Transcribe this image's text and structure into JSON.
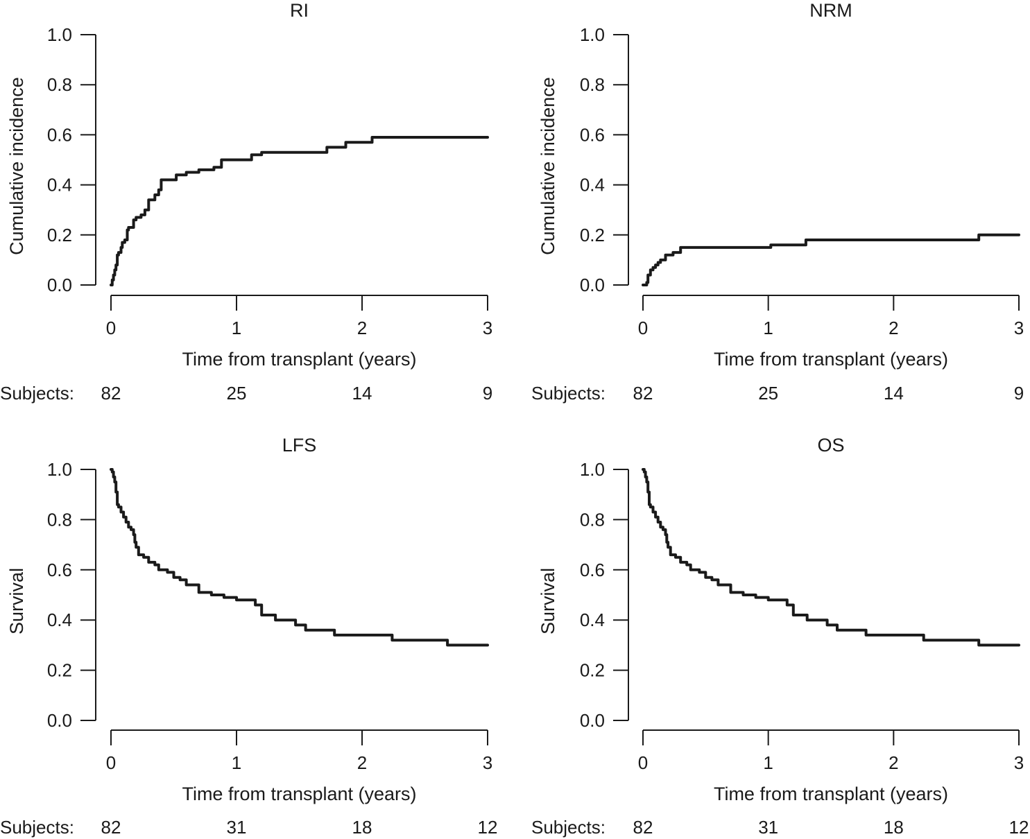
{
  "chart_data": [
    {
      "type": "line",
      "title": "RI",
      "xlabel": "Time from transplant (years)",
      "ylabel": "Cumulative incidence",
      "xlim": [
        0,
        3
      ],
      "ylim": [
        0,
        1
      ],
      "x_ticks": [
        0,
        1,
        2,
        3
      ],
      "x_tick_labels": [
        "0",
        "1",
        "2",
        "3"
      ],
      "y_ticks": [
        0,
        0.2,
        0.4,
        0.6,
        0.8,
        1.0
      ],
      "y_tick_labels": [
        "0.0",
        "0.2",
        "0.4",
        "0.6",
        "0.8",
        "1.0"
      ],
      "grid": false,
      "risk_table": {
        "label": "Subjects:",
        "times": [
          0,
          1,
          2,
          3
        ],
        "counts": [
          "82",
          "25",
          "14",
          "9"
        ]
      },
      "series": [
        {
          "step": true,
          "x": [
            0,
            0.01,
            0.02,
            0.03,
            0.04,
            0.05,
            0.06,
            0.08,
            0.09,
            0.11,
            0.13,
            0.14,
            0.16,
            0.18,
            0.2,
            0.24,
            0.27,
            0.3,
            0.35,
            0.38,
            0.4,
            0.52,
            0.6,
            0.7,
            0.82,
            0.88,
            1.12,
            1.2,
            1.72,
            1.87,
            2.08,
            3.0
          ],
          "y": [
            0,
            0.02,
            0.04,
            0.06,
            0.08,
            0.12,
            0.13,
            0.15,
            0.17,
            0.18,
            0.22,
            0.23,
            0.23,
            0.26,
            0.27,
            0.28,
            0.3,
            0.34,
            0.36,
            0.38,
            0.42,
            0.44,
            0.45,
            0.46,
            0.47,
            0.5,
            0.52,
            0.53,
            0.55,
            0.57,
            0.59,
            0.59
          ]
        }
      ]
    },
    {
      "type": "line",
      "title": "NRM",
      "xlabel": "Time from transplant (years)",
      "ylabel": "Cumulative incidence",
      "xlim": [
        0,
        3
      ],
      "ylim": [
        0,
        1
      ],
      "x_ticks": [
        0,
        1,
        2,
        3
      ],
      "x_tick_labels": [
        "0",
        "1",
        "2",
        "3"
      ],
      "y_ticks": [
        0,
        0.2,
        0.4,
        0.6,
        0.8,
        1.0
      ],
      "y_tick_labels": [
        "0.0",
        "0.2",
        "0.4",
        "0.6",
        "0.8",
        "1.0"
      ],
      "grid": false,
      "risk_table": {
        "label": "Subjects:",
        "times": [
          0,
          1,
          2,
          3
        ],
        "counts": [
          "82",
          "25",
          "14",
          "9"
        ]
      },
      "series": [
        {
          "step": true,
          "x": [
            0,
            0.03,
            0.04,
            0.06,
            0.08,
            0.1,
            0.12,
            0.14,
            0.18,
            0.24,
            0.3,
            1.02,
            1.3,
            2.68,
            3.0
          ],
          "y": [
            0,
            0.01,
            0.04,
            0.06,
            0.07,
            0.08,
            0.09,
            0.1,
            0.12,
            0.13,
            0.15,
            0.16,
            0.18,
            0.2,
            0.2
          ]
        }
      ]
    },
    {
      "type": "line",
      "title": "LFS",
      "xlabel": "Time from transplant (years)",
      "ylabel": "Survival",
      "xlim": [
        0,
        3
      ],
      "ylim": [
        0,
        1
      ],
      "x_ticks": [
        0,
        1,
        2,
        3
      ],
      "x_tick_labels": [
        "0",
        "1",
        "2",
        "3"
      ],
      "y_ticks": [
        0,
        0.2,
        0.4,
        0.6,
        0.8,
        1.0
      ],
      "y_tick_labels": [
        "0.0",
        "0.2",
        "0.4",
        "0.6",
        "0.8",
        "1.0"
      ],
      "grid": false,
      "risk_table": {
        "label": "Subjects:",
        "times": [
          0,
          1,
          2,
          3
        ],
        "counts": [
          "82",
          "31",
          "18",
          "12"
        ]
      },
      "series": [
        {
          "step": true,
          "x": [
            0,
            0.01,
            0.02,
            0.03,
            0.04,
            0.05,
            0.06,
            0.08,
            0.1,
            0.12,
            0.14,
            0.16,
            0.18,
            0.19,
            0.2,
            0.22,
            0.26,
            0.3,
            0.35,
            0.38,
            0.45,
            0.5,
            0.55,
            0.6,
            0.7,
            0.8,
            0.9,
            1.0,
            1.15,
            1.2,
            1.31,
            1.47,
            1.55,
            1.78,
            2.24,
            2.68,
            3.0
          ],
          "y": [
            1.0,
            0.99,
            0.97,
            0.95,
            0.91,
            0.86,
            0.85,
            0.83,
            0.81,
            0.79,
            0.77,
            0.76,
            0.74,
            0.71,
            0.69,
            0.66,
            0.65,
            0.63,
            0.62,
            0.6,
            0.59,
            0.57,
            0.56,
            0.54,
            0.51,
            0.5,
            0.49,
            0.48,
            0.46,
            0.42,
            0.4,
            0.38,
            0.36,
            0.34,
            0.32,
            0.3,
            0.3
          ]
        }
      ]
    },
    {
      "type": "line",
      "title": "OS",
      "xlabel": "Time from transplant (years)",
      "ylabel": "Survival",
      "xlim": [
        0,
        3
      ],
      "ylim": [
        0,
        1
      ],
      "x_ticks": [
        0,
        1,
        2,
        3
      ],
      "x_tick_labels": [
        "0",
        "1",
        "2",
        "3"
      ],
      "y_ticks": [
        0,
        0.2,
        0.4,
        0.6,
        0.8,
        1.0
      ],
      "y_tick_labels": [
        "0.0",
        "0.2",
        "0.4",
        "0.6",
        "0.8",
        "1.0"
      ],
      "grid": false,
      "risk_table": {
        "label": "Subjects:",
        "times": [
          0,
          1,
          2,
          3
        ],
        "counts": [
          "82",
          "31",
          "18",
          "12"
        ]
      },
      "series": [
        {
          "step": true,
          "x": [
            0,
            0.01,
            0.02,
            0.03,
            0.04,
            0.05,
            0.06,
            0.08,
            0.1,
            0.12,
            0.14,
            0.16,
            0.18,
            0.19,
            0.2,
            0.22,
            0.26,
            0.3,
            0.35,
            0.38,
            0.45,
            0.5,
            0.55,
            0.6,
            0.7,
            0.8,
            0.9,
            1.0,
            1.15,
            1.2,
            1.31,
            1.47,
            1.55,
            1.78,
            2.24,
            2.68,
            3.0
          ],
          "y": [
            1.0,
            0.99,
            0.97,
            0.95,
            0.91,
            0.86,
            0.85,
            0.83,
            0.81,
            0.79,
            0.77,
            0.76,
            0.74,
            0.71,
            0.69,
            0.66,
            0.65,
            0.63,
            0.62,
            0.6,
            0.59,
            0.57,
            0.56,
            0.54,
            0.51,
            0.5,
            0.49,
            0.48,
            0.46,
            0.42,
            0.4,
            0.38,
            0.36,
            0.34,
            0.32,
            0.3,
            0.3
          ]
        }
      ]
    }
  ]
}
